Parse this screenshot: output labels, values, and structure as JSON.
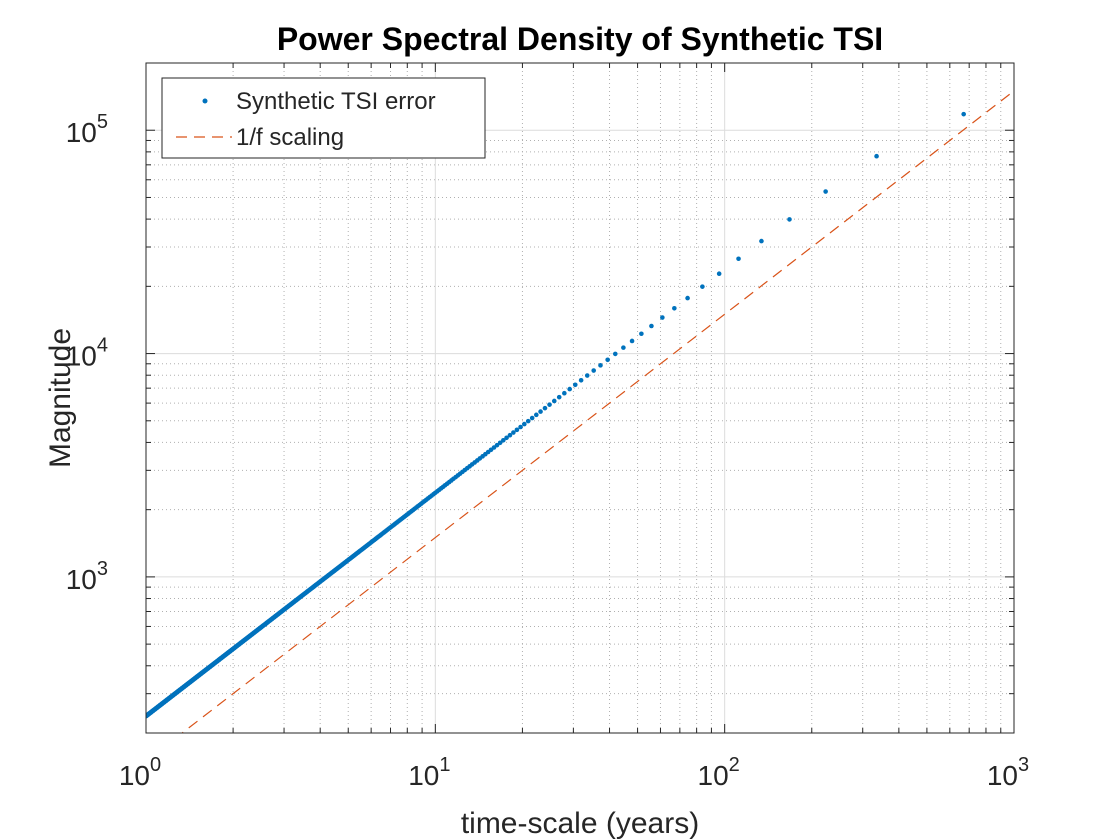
{
  "chart_data": {
    "type": "scatter",
    "title": "Power Spectral Density of Synthetic TSI",
    "xlabel": "time-scale (years)",
    "ylabel": "Magnitude",
    "xscale": "log",
    "yscale": "log",
    "xlim": [
      1,
      1000
    ],
    "ylim": [
      200,
      200000
    ],
    "grid": true,
    "minor_grid": true,
    "legend_position": "top-left",
    "x_ticks": [
      {
        "value": 1,
        "base": "10",
        "exp": "0"
      },
      {
        "value": 10,
        "base": "10",
        "exp": "1"
      },
      {
        "value": 100,
        "base": "10",
        "exp": "2"
      },
      {
        "value": 1000,
        "base": "10",
        "exp": "3"
      }
    ],
    "y_ticks": [
      {
        "value": 1000,
        "base": "10",
        "exp": "3"
      },
      {
        "value": 10000,
        "base": "10",
        "exp": "4"
      },
      {
        "value": 100000,
        "base": "10",
        "exp": "5"
      }
    ],
    "series": [
      {
        "name": "Synthetic TSI error",
        "style": "dots",
        "color": "#0072BD",
        "points": [
          [
            1,
            238
          ],
          [
            1.5,
            357
          ],
          [
            2,
            476
          ],
          [
            3,
            714
          ],
          [
            5,
            1190
          ],
          [
            10,
            2380
          ],
          [
            20,
            4760
          ],
          [
            30,
            7140
          ],
          [
            40,
            9520
          ],
          [
            50,
            11900
          ],
          [
            70,
            16660
          ],
          [
            100,
            23800
          ],
          [
            200,
            47600
          ],
          [
            300,
            71400
          ],
          [
            670,
            118000
          ]
        ]
      },
      {
        "name": "1/f scaling",
        "style": "dashed",
        "color": "#D95319",
        "points": [
          [
            1,
            150
          ],
          [
            1000,
            150000
          ]
        ]
      }
    ]
  }
}
